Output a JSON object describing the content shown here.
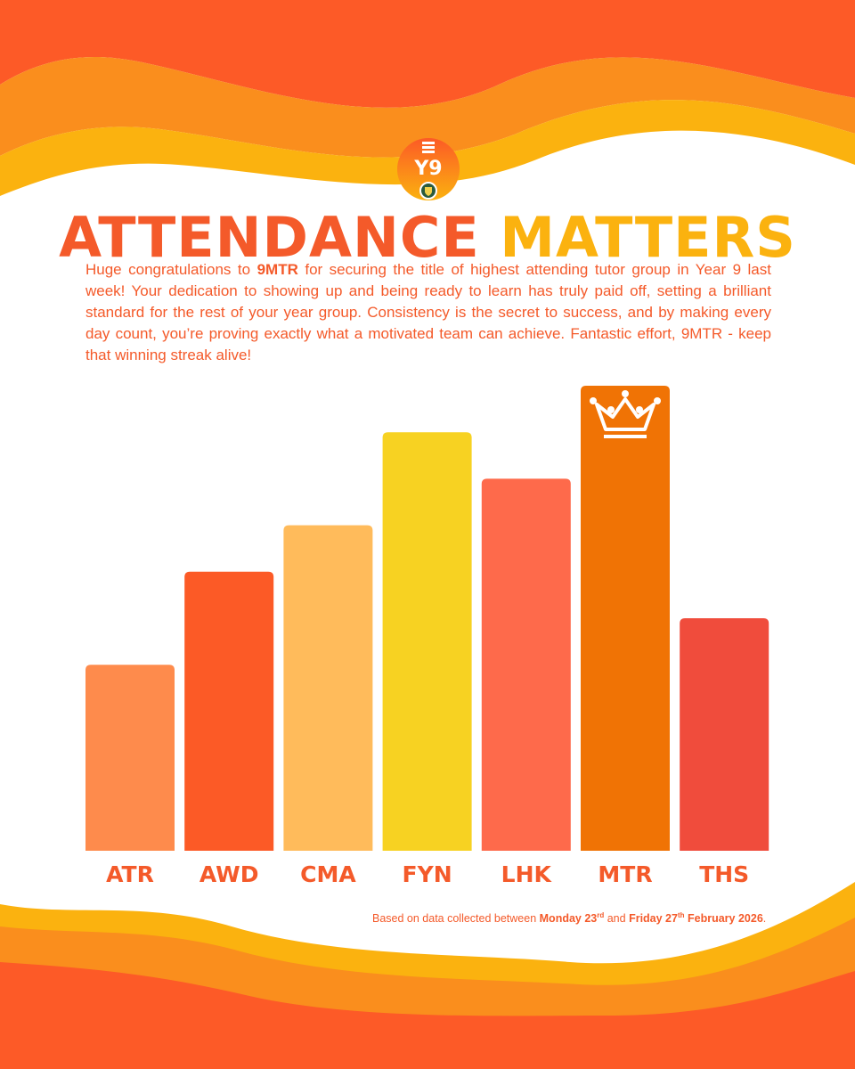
{
  "logo": {
    "label": "Y9"
  },
  "header": {
    "title_part1": "ATTENDANCE",
    "title_part2": "MATTERS"
  },
  "intro": {
    "t1": "Huge congratulations to ",
    "highlight": "9MTR",
    "t2": " for securing the title of highest attending tutor group in Year 9 last week! Your dedication to showing up and being ready to learn has truly paid off, setting a brilliant standard for the rest of your year group. Consistency is the secret to success, and by making every day count, you’re proving exactly what a motivated team can achieve. Fantastic effort, 9MTR - keep that winning streak alive!"
  },
  "chart_data": {
    "type": "bar",
    "categories": [
      "ATR",
      "AWD",
      "CMA",
      "FYN",
      "LHK",
      "MTR",
      "THS"
    ],
    "values": [
      40,
      60,
      70,
      90,
      80,
      100,
      50
    ],
    "ylim": [
      0,
      100
    ],
    "colors": [
      "#fe8b4c",
      "#fc5a26",
      "#ffbb5b",
      "#f7d222",
      "#fe6a4b",
      "#f07305",
      "#f04c3c"
    ],
    "label_color": "#f45a2a",
    "winner_icon": "crown-icon",
    "winner_index": 5
  },
  "footnote": {
    "t1": "Based on data collected between ",
    "d1": "Monday 23",
    "s1": "rd",
    "t2": " and ",
    "d2": "Friday 27",
    "s2": "th",
    "d3": "February 2026",
    "t3": "."
  },
  "colors": {
    "primary": "#f45a2a",
    "accent": "#fbb20f"
  }
}
